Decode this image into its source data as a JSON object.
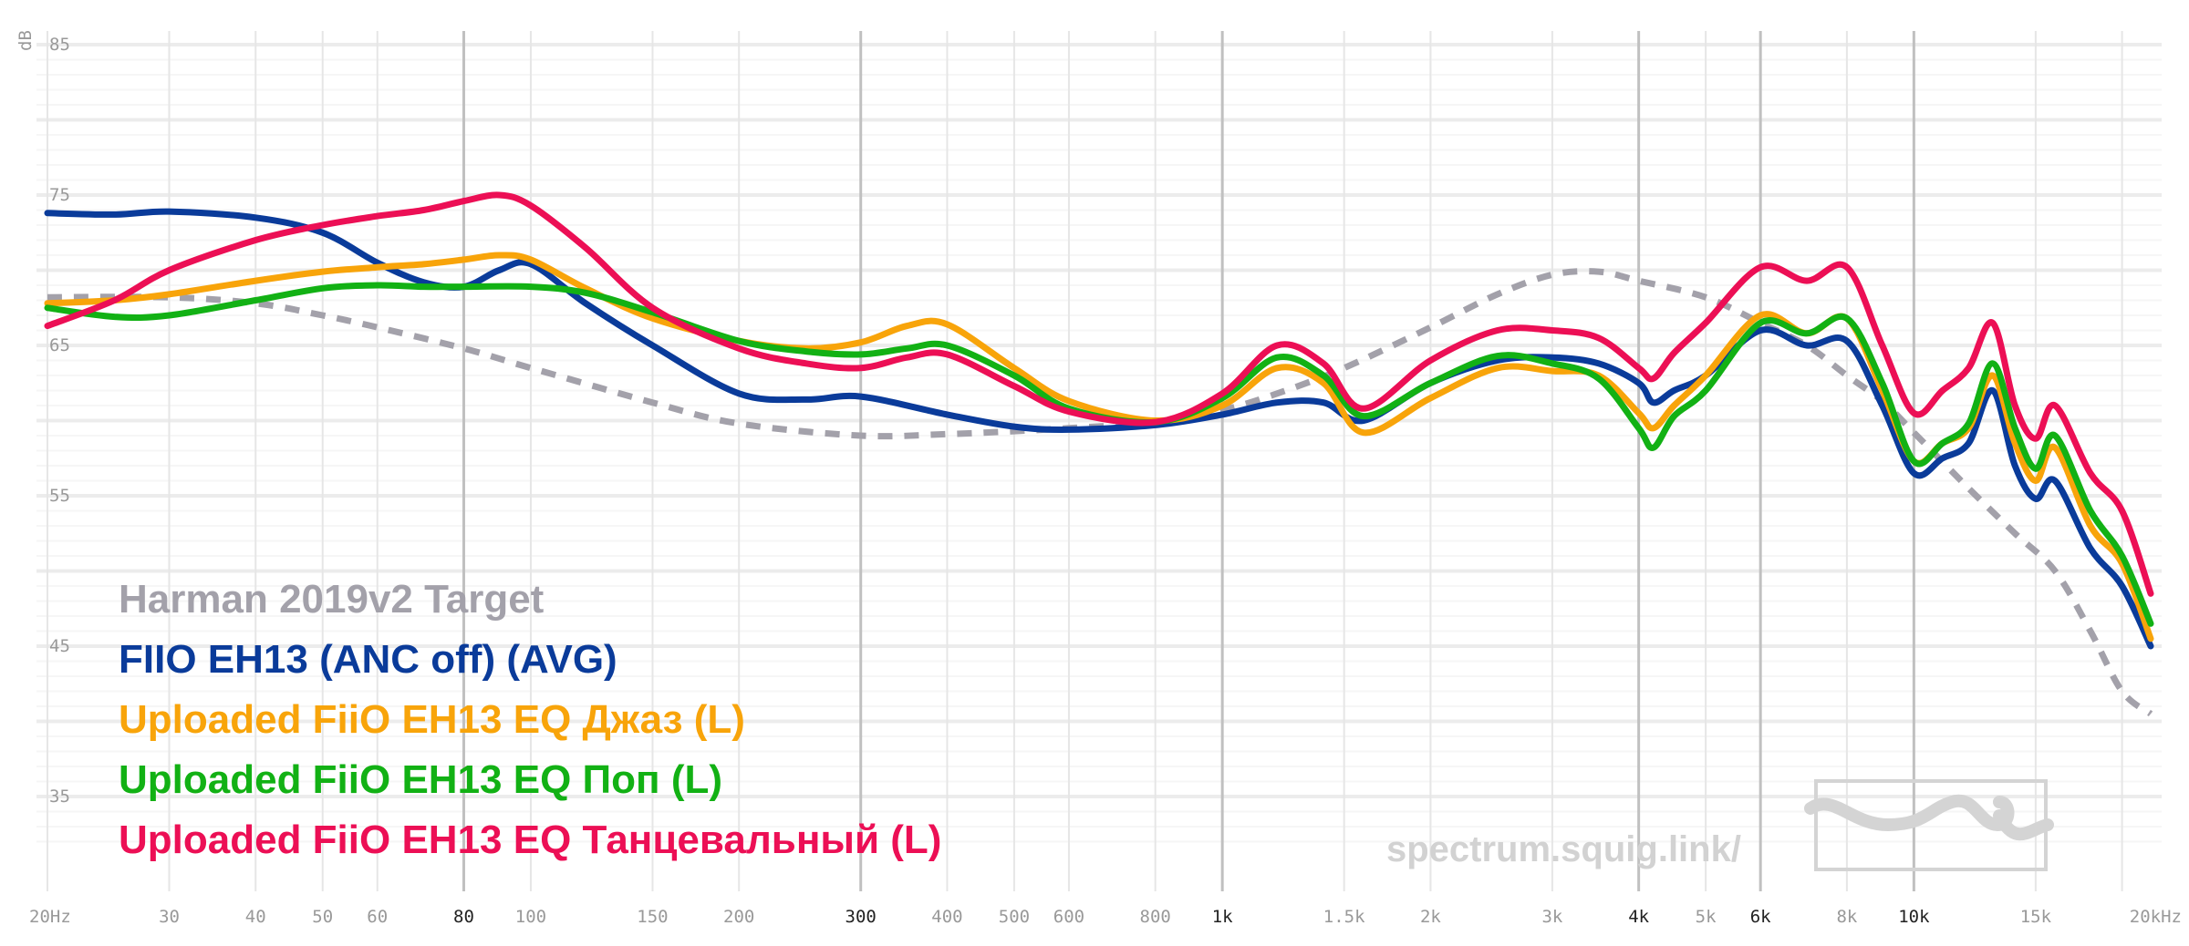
{
  "chart_data": {
    "type": "line",
    "ylabel": "dB",
    "ylim": [
      30,
      85
    ],
    "xlim": [
      20,
      22000
    ],
    "xscale": "log",
    "y_ticks": [
      85,
      75,
      65,
      55,
      45,
      35
    ],
    "x_ticks": [
      {
        "value": 20,
        "label": "20Hz",
        "major": false
      },
      {
        "value": 30,
        "label": "30",
        "major": false
      },
      {
        "value": 40,
        "label": "40",
        "major": false
      },
      {
        "value": 50,
        "label": "50",
        "major": false
      },
      {
        "value": 60,
        "label": "60",
        "major": false
      },
      {
        "value": 80,
        "label": "80",
        "major": true
      },
      {
        "value": 100,
        "label": "100",
        "major": false
      },
      {
        "value": 150,
        "label": "150",
        "major": false
      },
      {
        "value": 200,
        "label": "200",
        "major": false
      },
      {
        "value": 300,
        "label": "300",
        "major": true
      },
      {
        "value": 400,
        "label": "400",
        "major": false
      },
      {
        "value": 500,
        "label": "500",
        "major": false
      },
      {
        "value": 600,
        "label": "600",
        "major": false
      },
      {
        "value": 800,
        "label": "800",
        "major": false
      },
      {
        "value": 1000,
        "label": "1k",
        "major": true
      },
      {
        "value": 1500,
        "label": "1.5k",
        "major": false
      },
      {
        "value": 2000,
        "label": "2k",
        "major": false
      },
      {
        "value": 3000,
        "label": "3k",
        "major": false
      },
      {
        "value": 4000,
        "label": "4k",
        "major": true
      },
      {
        "value": 5000,
        "label": "5k",
        "major": false
      },
      {
        "value": 6000,
        "label": "6k",
        "major": true
      },
      {
        "value": 8000,
        "label": "8k",
        "major": false
      },
      {
        "value": 10000,
        "label": "10k",
        "major": true
      },
      {
        "value": 15000,
        "label": "15k",
        "major": false
      },
      {
        "value": 20000,
        "label": "20kHz",
        "major": false
      }
    ],
    "series": [
      {
        "name": "Harman 2019v2 Target",
        "color": "#a3a1aa",
        "dashed": true,
        "points": [
          [
            20,
            68.2
          ],
          [
            30,
            68.2
          ],
          [
            40,
            67.8
          ],
          [
            50,
            67
          ],
          [
            60,
            66.2
          ],
          [
            80,
            64.8
          ],
          [
            100,
            63.5
          ],
          [
            150,
            61.2
          ],
          [
            200,
            59.8
          ],
          [
            300,
            59.0
          ],
          [
            400,
            59.1
          ],
          [
            500,
            59.3
          ],
          [
            600,
            59.5
          ],
          [
            800,
            59.9
          ],
          [
            1000,
            60.7
          ],
          [
            1200,
            61.8
          ],
          [
            1500,
            63.5
          ],
          [
            2000,
            66.2
          ],
          [
            2500,
            68.4
          ],
          [
            3000,
            69.7
          ],
          [
            3500,
            69.9
          ],
          [
            4000,
            69.3
          ],
          [
            5000,
            68.2
          ],
          [
            6000,
            66.5
          ],
          [
            7000,
            65.0
          ],
          [
            8000,
            63.0
          ],
          [
            9000,
            61.3
          ],
          [
            10000,
            59.2
          ],
          [
            12000,
            55.5
          ],
          [
            14000,
            52.5
          ],
          [
            16000,
            50.0
          ],
          [
            18000,
            46.0
          ],
          [
            20000,
            42.0
          ],
          [
            22000,
            40.5
          ]
        ]
      },
      {
        "name": "FIIO EH13 (ANC off) (AVG)",
        "color": "#0a3b9a",
        "dashed": false,
        "points": [
          [
            20,
            73.8
          ],
          [
            25,
            73.7
          ],
          [
            30,
            73.9
          ],
          [
            40,
            73.5
          ],
          [
            50,
            72.5
          ],
          [
            60,
            70.5
          ],
          [
            70,
            69.2
          ],
          [
            80,
            68.9
          ],
          [
            90,
            70.0
          ],
          [
            100,
            70.4
          ],
          [
            120,
            67.8
          ],
          [
            150,
            65.0
          ],
          [
            200,
            61.8
          ],
          [
            250,
            61.4
          ],
          [
            300,
            61.6
          ],
          [
            400,
            60.4
          ],
          [
            500,
            59.6
          ],
          [
            600,
            59.4
          ],
          [
            800,
            59.7
          ],
          [
            1000,
            60.4
          ],
          [
            1200,
            61.2
          ],
          [
            1400,
            61.2
          ],
          [
            1600,
            60.0
          ],
          [
            2000,
            62.5
          ],
          [
            2500,
            64.0
          ],
          [
            3000,
            64.2
          ],
          [
            3500,
            63.8
          ],
          [
            4000,
            62.5
          ],
          [
            4200,
            61.2
          ],
          [
            4500,
            62.0
          ],
          [
            5000,
            63.0
          ],
          [
            6000,
            66.0
          ],
          [
            7000,
            65.0
          ],
          [
            8000,
            65.3
          ],
          [
            9000,
            61.0
          ],
          [
            10000,
            56.5
          ],
          [
            11000,
            57.5
          ],
          [
            12000,
            58.5
          ],
          [
            13000,
            62.0
          ],
          [
            14000,
            57.0
          ],
          [
            15000,
            54.8
          ],
          [
            16000,
            56.0
          ],
          [
            18000,
            51.5
          ],
          [
            20000,
            49.0
          ],
          [
            22000,
            45.0
          ]
        ]
      },
      {
        "name": "Uploaded FiiO EH13 EQ Джаз (L)",
        "color": "#f8a40a",
        "dashed": false,
        "points": [
          [
            20,
            67.8
          ],
          [
            25,
            68.0
          ],
          [
            30,
            68.4
          ],
          [
            40,
            69.3
          ],
          [
            50,
            69.9
          ],
          [
            60,
            70.2
          ],
          [
            70,
            70.4
          ],
          [
            80,
            70.7
          ],
          [
            90,
            71.0
          ],
          [
            100,
            70.7
          ],
          [
            120,
            68.8
          ],
          [
            150,
            66.8
          ],
          [
            200,
            65.3
          ],
          [
            250,
            64.8
          ],
          [
            300,
            65.2
          ],
          [
            350,
            66.3
          ],
          [
            400,
            66.4
          ],
          [
            500,
            63.5
          ],
          [
            600,
            61.3
          ],
          [
            800,
            60.0
          ],
          [
            1000,
            61.0
          ],
          [
            1200,
            63.5
          ],
          [
            1400,
            62.5
          ],
          [
            1600,
            59.2
          ],
          [
            2000,
            61.5
          ],
          [
            2500,
            63.5
          ],
          [
            3000,
            63.3
          ],
          [
            3500,
            63.0
          ],
          [
            4000,
            60.5
          ],
          [
            4200,
            59.5
          ],
          [
            4500,
            61.0
          ],
          [
            5000,
            63.0
          ],
          [
            6000,
            67.0
          ],
          [
            7000,
            65.8
          ],
          [
            8000,
            66.8
          ],
          [
            9000,
            62.0
          ],
          [
            10000,
            57.3
          ],
          [
            11000,
            58.5
          ],
          [
            12000,
            59.5
          ],
          [
            13000,
            63.0
          ],
          [
            14000,
            58.5
          ],
          [
            15000,
            56.0
          ],
          [
            16000,
            58.2
          ],
          [
            18000,
            53.0
          ],
          [
            20000,
            50.5
          ],
          [
            22000,
            45.5
          ]
        ]
      },
      {
        "name": "Uploaded FiiO EH13 EQ Поп (L)",
        "color": "#12b114",
        "dashed": false,
        "points": [
          [
            20,
            67.5
          ],
          [
            25,
            66.9
          ],
          [
            30,
            67.0
          ],
          [
            40,
            68.0
          ],
          [
            50,
            68.8
          ],
          [
            60,
            69.0
          ],
          [
            70,
            68.9
          ],
          [
            80,
            68.9
          ],
          [
            100,
            68.9
          ],
          [
            120,
            68.5
          ],
          [
            150,
            67.2
          ],
          [
            200,
            65.3
          ],
          [
            250,
            64.6
          ],
          [
            300,
            64.4
          ],
          [
            350,
            64.8
          ],
          [
            400,
            65.0
          ],
          [
            500,
            63.0
          ],
          [
            600,
            60.8
          ],
          [
            800,
            59.9
          ],
          [
            1000,
            61.5
          ],
          [
            1200,
            64.2
          ],
          [
            1400,
            63.0
          ],
          [
            1600,
            60.3
          ],
          [
            2000,
            62.5
          ],
          [
            2500,
            64.3
          ],
          [
            3000,
            63.8
          ],
          [
            3500,
            62.8
          ],
          [
            4000,
            59.5
          ],
          [
            4200,
            58.2
          ],
          [
            4500,
            60.3
          ],
          [
            5000,
            62.0
          ],
          [
            6000,
            66.5
          ],
          [
            7000,
            65.8
          ],
          [
            8000,
            66.8
          ],
          [
            9000,
            62.5
          ],
          [
            10000,
            57.3
          ],
          [
            11000,
            58.5
          ],
          [
            12000,
            59.8
          ],
          [
            13000,
            63.8
          ],
          [
            14000,
            59.5
          ],
          [
            15000,
            56.8
          ],
          [
            16000,
            59.0
          ],
          [
            18000,
            54.0
          ],
          [
            20000,
            51.0
          ],
          [
            22000,
            46.5
          ]
        ]
      },
      {
        "name": "Uploaded FiiO EH13 EQ Танцевальный (L)",
        "color": "#ec0f55",
        "dashed": false,
        "points": [
          [
            20,
            66.3
          ],
          [
            25,
            68.0
          ],
          [
            30,
            70.0
          ],
          [
            40,
            72.0
          ],
          [
            50,
            73.0
          ],
          [
            60,
            73.6
          ],
          [
            70,
            74.0
          ],
          [
            80,
            74.6
          ],
          [
            90,
            75.0
          ],
          [
            100,
            74.3
          ],
          [
            120,
            71.5
          ],
          [
            150,
            67.5
          ],
          [
            200,
            64.8
          ],
          [
            250,
            63.8
          ],
          [
            300,
            63.5
          ],
          [
            350,
            64.2
          ],
          [
            400,
            64.4
          ],
          [
            500,
            62.3
          ],
          [
            600,
            60.6
          ],
          [
            800,
            59.9
          ],
          [
            1000,
            61.8
          ],
          [
            1200,
            65.0
          ],
          [
            1400,
            63.8
          ],
          [
            1600,
            60.8
          ],
          [
            2000,
            64.0
          ],
          [
            2500,
            66.0
          ],
          [
            3000,
            66.0
          ],
          [
            3500,
            65.5
          ],
          [
            4000,
            63.5
          ],
          [
            4200,
            62.8
          ],
          [
            4500,
            64.5
          ],
          [
            5000,
            66.5
          ],
          [
            6000,
            70.2
          ],
          [
            7000,
            69.3
          ],
          [
            8000,
            70.2
          ],
          [
            9000,
            65.0
          ],
          [
            10000,
            60.5
          ],
          [
            11000,
            62.0
          ],
          [
            12000,
            63.5
          ],
          [
            13000,
            66.5
          ],
          [
            14000,
            61.0
          ],
          [
            15000,
            58.8
          ],
          [
            16000,
            61.0
          ],
          [
            18000,
            56.5
          ],
          [
            20000,
            54.0
          ],
          [
            22000,
            48.5
          ]
        ]
      }
    ]
  },
  "watermark": "spectrum.squig.link/"
}
